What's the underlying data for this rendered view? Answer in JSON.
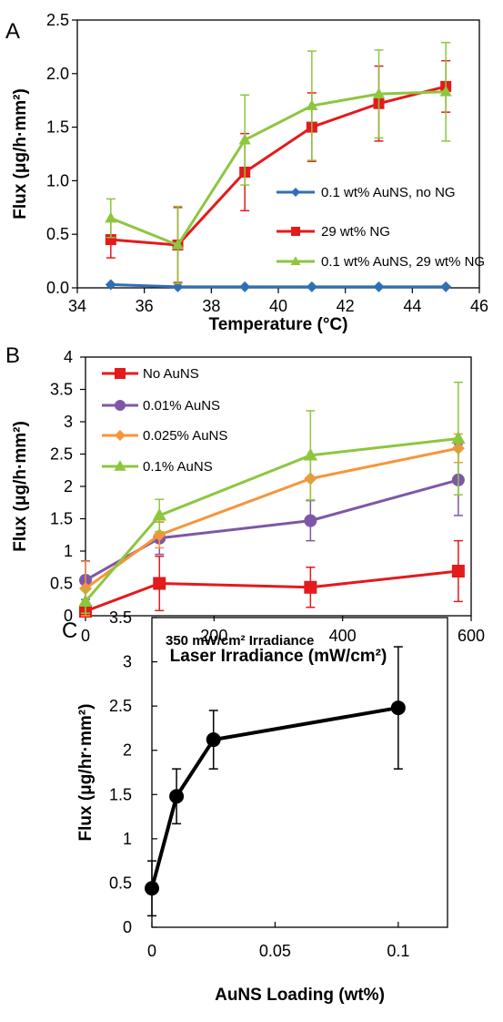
{
  "chart_data": [
    {
      "panel": "A",
      "type": "line",
      "xlabel": "Temperature (°C)",
      "ylabel": "Flux (μg/h·mm²)",
      "xlim": [
        34,
        46
      ],
      "ylim": [
        0,
        2.5
      ],
      "xticks": [
        "34",
        "36",
        "38",
        "40",
        "42",
        "44",
        "46"
      ],
      "yticks": [
        "0.0",
        "0.5",
        "1.0",
        "1.5",
        "2.0",
        "2.5"
      ],
      "legend_position": "lower-right",
      "grid": false,
      "series": [
        {
          "name": "0.1 wt% AuNS, no NG",
          "color": "#2f6fb5",
          "marker": "diamond",
          "x": [
            35,
            37,
            39,
            41,
            43,
            45
          ],
          "y": [
            0.03,
            0.01,
            0.01,
            0.01,
            0.01,
            0.01
          ],
          "err": [
            0,
            0,
            0,
            0,
            0,
            0
          ]
        },
        {
          "name": "29 wt% NG",
          "color": "#e41a1c",
          "marker": "square",
          "x": [
            35,
            37,
            39,
            41,
            43,
            45
          ],
          "y": [
            0.45,
            0.4,
            1.08,
            1.5,
            1.72,
            1.88
          ],
          "err": [
            0.17,
            0.35,
            0.36,
            0.32,
            0.35,
            0.24
          ]
        },
        {
          "name": "0.1 wt% AuNS, 29 wt% NG",
          "color": "#8dc63f",
          "marker": "triangle",
          "x": [
            35,
            37,
            39,
            41,
            43,
            45
          ],
          "y": [
            0.65,
            0.4,
            1.38,
            1.7,
            1.81,
            1.83
          ],
          "err": [
            0.18,
            0.36,
            0.42,
            0.51,
            0.41,
            0.46
          ]
        }
      ]
    },
    {
      "panel": "B",
      "type": "line",
      "xlabel": "Laser Irradiance (mW/cm²)",
      "ylabel": "Flux (μg/h·mm²)",
      "xlim": [
        0,
        600
      ],
      "ylim": [
        0,
        4
      ],
      "xticks": [
        "0",
        "200",
        "400",
        "600"
      ],
      "yticks": [
        "0",
        "0.5",
        "1",
        "1.5",
        "2",
        "2.5",
        "3",
        "3.5",
        "4"
      ],
      "legend_position": "top-left",
      "grid": false,
      "series": [
        {
          "name": "No AuNS",
          "color": "#e41a1c",
          "marker": "square",
          "x": [
            0,
            115,
            350,
            580
          ],
          "y": [
            0.07,
            0.5,
            0.44,
            0.69
          ],
          "err": [
            0.05,
            0.42,
            0.31,
            0.47
          ]
        },
        {
          "name": "0.01% AuNS",
          "color": "#7e57a8",
          "marker": "circle",
          "x": [
            0,
            115,
            350,
            580
          ],
          "y": [
            0.55,
            1.2,
            1.47,
            2.1
          ],
          "err": [
            0.3,
            0.25,
            0.31,
            0.55
          ]
        },
        {
          "name": "0.025% AuNS",
          "color": "#f7943a",
          "marker": "diamond",
          "x": [
            0,
            115,
            350,
            580
          ],
          "y": [
            0.42,
            1.25,
            2.12,
            2.59
          ],
          "err": [
            0.42,
            0.2,
            0.33,
            0.22
          ]
        },
        {
          "name": "0.1% AuNS",
          "color": "#8dc63f",
          "marker": "triangle",
          "x": [
            0,
            115,
            350,
            580
          ],
          "y": [
            0.22,
            1.55,
            2.48,
            2.74
          ],
          "err": [
            0.18,
            0.25,
            0.69,
            0.87
          ]
        }
      ]
    },
    {
      "panel": "C",
      "type": "line",
      "xlabel": "AuNS Loading (wt%)",
      "ylabel": "Flux (μg/hr·mm²)",
      "annotation": "350 mW/cm² Irradiance",
      "xlim": [
        0,
        0.12
      ],
      "ylim": [
        0,
        3.5
      ],
      "xticks": [
        "0",
        "0.05",
        "0.1"
      ],
      "yticks": [
        "0",
        "0.5",
        "1",
        "1.5",
        "2",
        "2.5",
        "3",
        "3.5"
      ],
      "grid": false,
      "series": [
        {
          "color": "#000000",
          "marker": "circle",
          "x": [
            0,
            0.01,
            0.025,
            0.1
          ],
          "y": [
            0.44,
            1.48,
            2.12,
            2.48
          ],
          "err": [
            0.31,
            0.31,
            0.33,
            0.69
          ]
        }
      ]
    }
  ]
}
